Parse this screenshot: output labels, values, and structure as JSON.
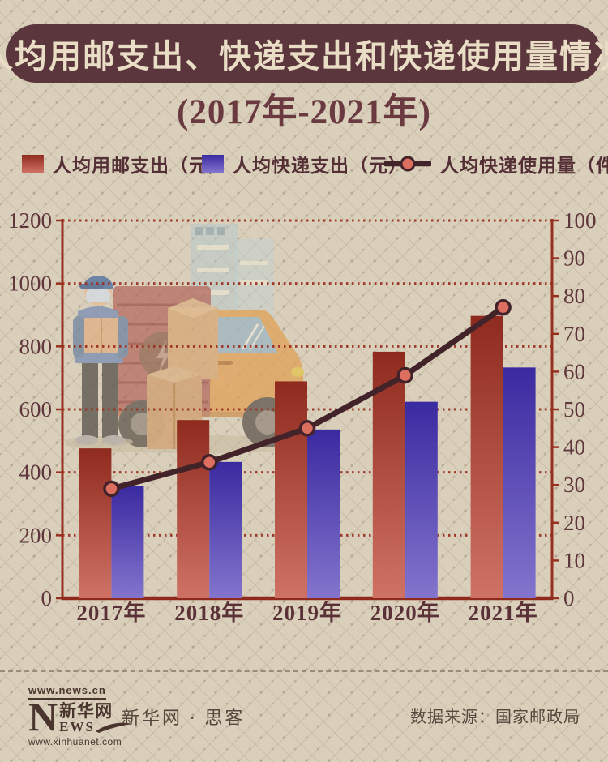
{
  "title": "人均用邮支出、快递支出和快递使用量情况",
  "subtitle": "(2017年-2021年)",
  "legend": [
    {
      "label": "人均用邮支出（元）",
      "swatch": "red-bar"
    },
    {
      "label": "人均快递支出（元）",
      "swatch": "blue-bar"
    },
    {
      "label": "人均快递使用量（件）",
      "swatch": "line-marker"
    }
  ],
  "chart_data": {
    "type": "bar",
    "subtype": "grouped bars + line on secondary axis",
    "categories": [
      "2017年",
      "2018年",
      "2019年",
      "2020年",
      "2021年"
    ],
    "series": [
      {
        "name": "人均用邮支出（元）",
        "type": "bar",
        "axis": "left",
        "values": [
          476,
          566,
          689,
          783,
          897
        ]
      },
      {
        "name": "人均快递支出（元）",
        "type": "bar",
        "axis": "left",
        "values": [
          357,
          433,
          536,
          624,
          733
        ]
      },
      {
        "name": "人均快递使用量（件）",
        "type": "line",
        "axis": "right",
        "values": [
          29,
          36,
          45,
          59,
          77
        ]
      }
    ],
    "left_axis": {
      "min": 0,
      "max": 1200,
      "step": 200,
      "ticks": [
        0,
        200,
        400,
        600,
        800,
        1000,
        1200
      ]
    },
    "right_axis": {
      "min": 0,
      "max": 100,
      "step": 10,
      "ticks": [
        0,
        10,
        20,
        30,
        40,
        50,
        60,
        70,
        80,
        90,
        100
      ]
    },
    "grid": "dotted horizontal lines at left-axis steps",
    "legend_position": "top"
  },
  "footer": {
    "logo_url_top": "www.news.cn",
    "logo_n": "N",
    "logo_cn": "新华网",
    "logo_ews": "EWS",
    "logo_url_bottom": "www.xinhuanet.com",
    "brand": "新华网 · 思客",
    "source": "数据来源：国家邮政局"
  },
  "colors": {
    "background": "#d9cfbb",
    "title_bar": "#5b363c",
    "title_text": "#e9ddc6",
    "subtitle_text": "#6b3a41",
    "bar_red_top": "#8f2a1e",
    "bar_red_bottom": "#cf7265",
    "bar_blue_top": "#3a2aa0",
    "bar_blue_bottom": "#8374cd",
    "line": "#42232a",
    "marker_fill": "#dd6f61",
    "axis": "#97301f",
    "grid_dots": "#9c3122",
    "axis_labels": "#5f363c"
  }
}
